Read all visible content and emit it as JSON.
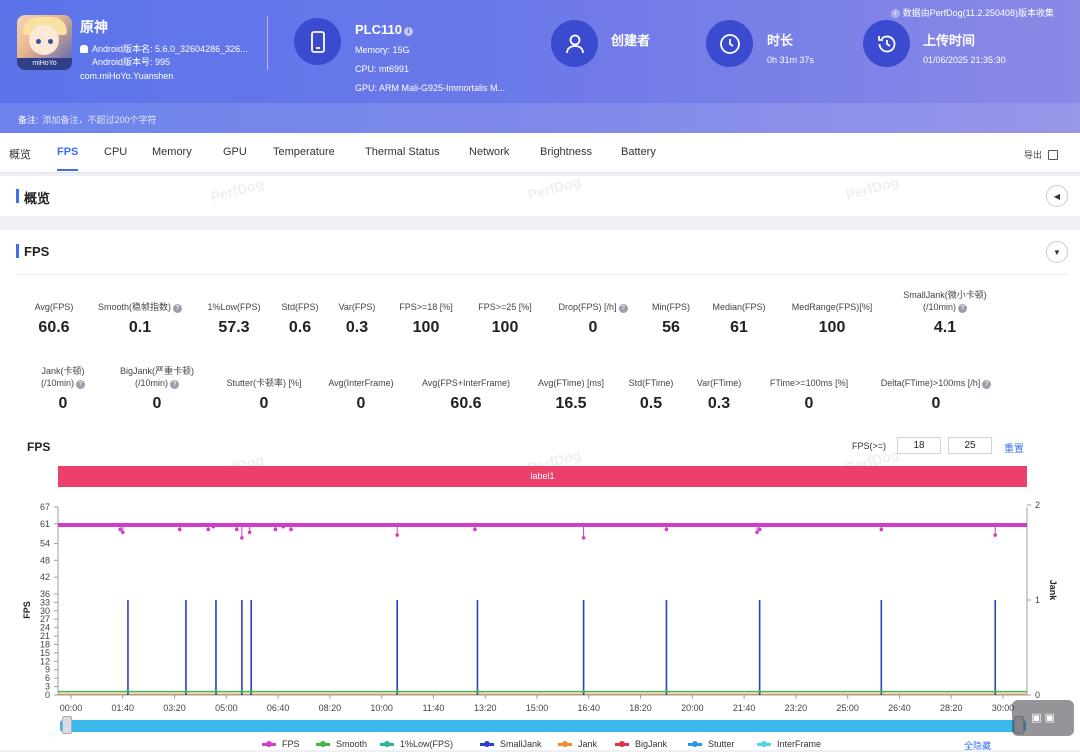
{
  "header": {
    "app_name": "原神",
    "app_version_line": "Android版本名: 5.6.0_32604286_326...",
    "app_build_line": "Android版本号: 995",
    "package_name": "com.miHoYo.Yuanshen",
    "logo_tag": "miHoYo",
    "device": "PLC110",
    "memory": "Memory: 15G",
    "cpu": "CPU: mt6991",
    "gpu": "GPU: ARM Mali-G925-Immortalis M...",
    "creator_label": "创建者",
    "duration_label": "时长",
    "duration_value": "0h 31m 37s",
    "upload_label": "上传时间",
    "upload_value": "01/06/2025 21:35:30",
    "source_note": "数据由PerfDog(11.2.250408)版本收集",
    "note_label": "备注:",
    "note_placeholder": "添加备注，不超过200个字符"
  },
  "tabs": [
    "概览",
    "FPS",
    "CPU",
    "Memory",
    "GPU",
    "Temperature",
    "Thermal Status",
    "Network",
    "Brightness",
    "Battery"
  ],
  "active_tab": "FPS",
  "export_label": "导出",
  "overview_section": {
    "title": "概览"
  },
  "fps_section": {
    "title": "FPS"
  },
  "watermark": "PerfDog",
  "metrics_row1": [
    {
      "label": "Avg(FPS)",
      "value": "60.6"
    },
    {
      "label": "Smooth(稳帧指数)",
      "value": "0.1",
      "help": true
    },
    {
      "label": "1%Low(FPS)",
      "value": "57.3"
    },
    {
      "label": "Std(FPS)",
      "value": "0.6"
    },
    {
      "label": "Var(FPS)",
      "value": "0.3"
    },
    {
      "label": "FPS>=18 [%]",
      "value": "100"
    },
    {
      "label": "FPS>=25 [%]",
      "value": "100"
    },
    {
      "label": "Drop(FPS) [/h]",
      "value": "0",
      "help": true
    },
    {
      "label": "Min(FPS)",
      "value": "56"
    },
    {
      "label": "Median(FPS)",
      "value": "61"
    },
    {
      "label": "MedRange(FPS)[%]",
      "value": "100"
    },
    {
      "label": "SmallJank(微小卡顿)",
      "label2": "(/10min)",
      "value": "4.1",
      "help": true
    }
  ],
  "metrics_row2": [
    {
      "label": "Jank(卡顿)",
      "label2": "(/10min)",
      "value": "0",
      "help": true
    },
    {
      "label": "BigJank(严重卡顿)",
      "label2": "(/10min)",
      "value": "0",
      "help": true
    },
    {
      "label": "Stutter(卡顿率) [%]",
      "value": "0"
    },
    {
      "label": "Avg(InterFrame)",
      "value": "0"
    },
    {
      "label": "Avg(FPS+InterFrame)",
      "value": "60.6"
    },
    {
      "label": "Avg(FTime) [ms]",
      "value": "16.5"
    },
    {
      "label": "Std(FTime)",
      "value": "0.5"
    },
    {
      "label": "Var(FTime)",
      "value": "0.3"
    },
    {
      "label": "FTime>=100ms [%]",
      "value": "0"
    },
    {
      "label": "Delta(FTime)>100ms [/h]",
      "value": "0",
      "help": true
    }
  ],
  "chart_controls": {
    "title": "FPS",
    "threshold_label": "FPS(>=)",
    "threshold_1": "18",
    "threshold_2": "25",
    "reset_label": "重置",
    "band_label": "label1",
    "hide_all_label": "全隐藏"
  },
  "chart_data": {
    "type": "line",
    "ylabel": "FPS",
    "y2label": "Jank",
    "ylim": [
      0,
      67
    ],
    "y_ticks": [
      0,
      3,
      6,
      9,
      12,
      15,
      18,
      21,
      24,
      27,
      30,
      33,
      36,
      42,
      48,
      54,
      61,
      67
    ],
    "y2_ticks": [
      0,
      1,
      2
    ],
    "x_ticks": [
      "00:00",
      "01:40",
      "03:20",
      "05:00",
      "06:40",
      "08:20",
      "10:00",
      "11:40",
      "13:20",
      "15:00",
      "16:40",
      "18:20",
      "20:00",
      "21:40",
      "23:20",
      "25:00",
      "26:40",
      "28:20",
      "30:00"
    ],
    "x_range_seconds": [
      0,
      1897
    ],
    "fps_baseline": 60.6,
    "fps_dips": [
      {
        "t": 95,
        "v": 59
      },
      {
        "t": 100,
        "v": 58
      },
      {
        "t": 210,
        "v": 59
      },
      {
        "t": 265,
        "v": 59
      },
      {
        "t": 275,
        "v": 60
      },
      {
        "t": 320,
        "v": 59
      },
      {
        "t": 330,
        "v": 56
      },
      {
        "t": 345,
        "v": 58
      },
      {
        "t": 395,
        "v": 59
      },
      {
        "t": 410,
        "v": 60
      },
      {
        "t": 425,
        "v": 59
      },
      {
        "t": 630,
        "v": 57
      },
      {
        "t": 780,
        "v": 59
      },
      {
        "t": 990,
        "v": 56
      },
      {
        "t": 1150,
        "v": 59
      },
      {
        "t": 1325,
        "v": 58
      },
      {
        "t": 1330,
        "v": 59
      },
      {
        "t": 1565,
        "v": 59
      },
      {
        "t": 1785,
        "v": 57
      }
    ],
    "small_jank_times": [
      110,
      222,
      280,
      330,
      348,
      630,
      785,
      990,
      1150,
      1330,
      1565,
      1785
    ],
    "series": [
      {
        "name": "FPS",
        "color": "#d23cc6"
      },
      {
        "name": "Smooth",
        "color": "#3fb54c"
      },
      {
        "name": "1%Low(FPS)",
        "color": "#2bb3a0"
      },
      {
        "name": "SmallJank",
        "color": "#2a3fc2"
      },
      {
        "name": "Jank",
        "color": "#f28a2e"
      },
      {
        "name": "BigJank",
        "color": "#e2304b"
      },
      {
        "name": "Stutter",
        "color": "#2f96e6"
      },
      {
        "name": "InterFrame",
        "color": "#4fd3e6"
      }
    ]
  }
}
